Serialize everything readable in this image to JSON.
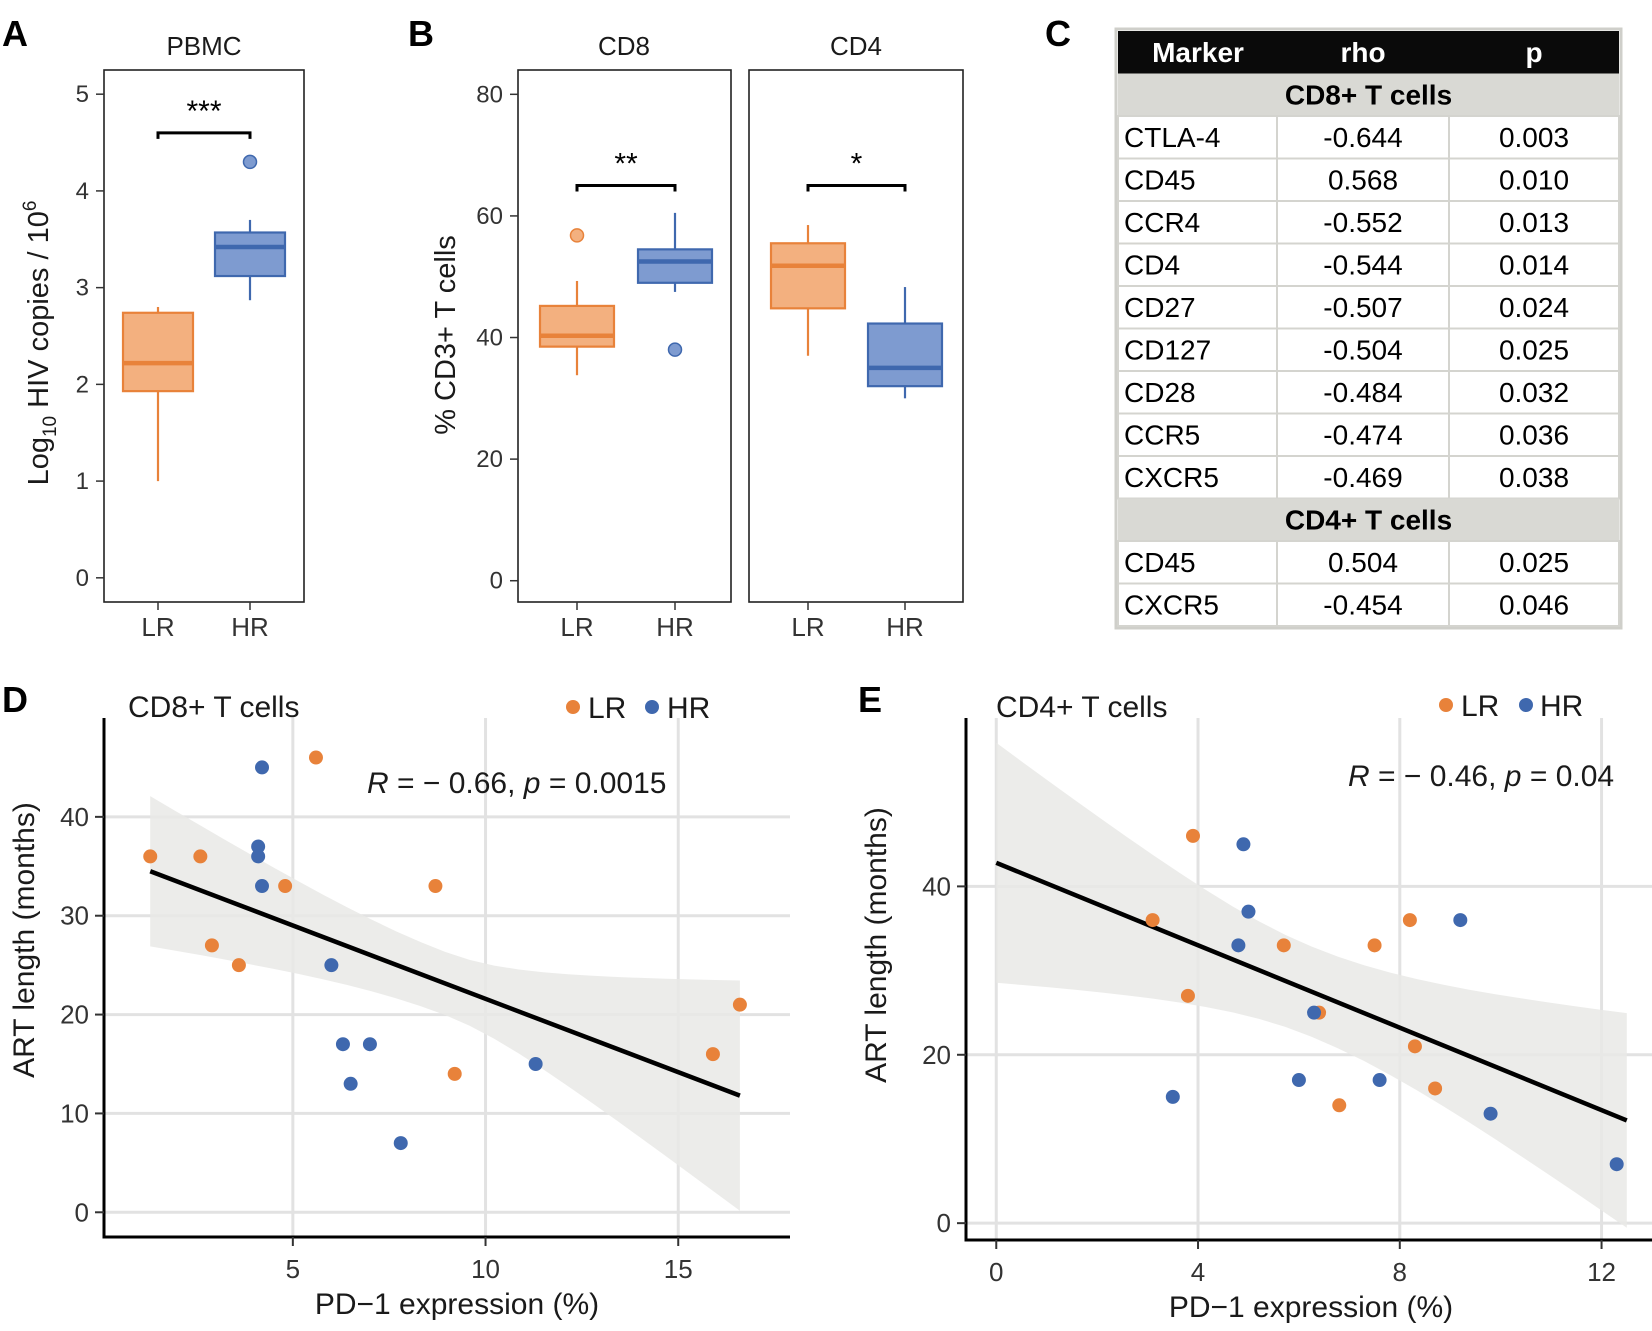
{
  "colors": {
    "LR": "#E8823A",
    "LR_fill": "#F3B07F",
    "HR": "#3F68AE",
    "HR_fill": "#7E9BD0",
    "band": "#E9E9E6",
    "grid": "#E2E2E2",
    "table_header_bg": "#0A0A0A",
    "table_section_bg": "#D9D9D4"
  },
  "chart_data": [
    {
      "id": "A",
      "panel_label": "A",
      "type": "box",
      "strip_title": "PBMC",
      "ylabel_main": "Log",
      "ylabel_sub": "10",
      "ylabel_rest": " HIV copies / 10",
      "ylabel_sup": "6",
      "ylim": [
        -0.25,
        5.25
      ],
      "yticks": [
        "0",
        "1",
        "2",
        "3",
        "4",
        "5"
      ],
      "categories": [
        "LR",
        "HR"
      ],
      "boxes": [
        {
          "group": "LR",
          "min": 1.0,
          "q1": 1.93,
          "median": 2.22,
          "q3": 2.74,
          "max": 2.8,
          "outliers": []
        },
        {
          "group": "HR",
          "min": 2.87,
          "q1": 3.12,
          "median": 3.42,
          "q3": 3.57,
          "max": 3.7,
          "outliers": [
            4.3
          ]
        }
      ],
      "significance": [
        {
          "label": "***",
          "y": 4.6
        }
      ]
    },
    {
      "id": "B",
      "panel_label": "B",
      "type": "box",
      "ylabel": "% CD3+ T cells",
      "ylim": [
        -3.5,
        84
      ],
      "yticks": [
        "0",
        "20",
        "40",
        "60",
        "80"
      ],
      "facets": [
        {
          "strip_title": "CD8",
          "categories": [
            "LR",
            "HR"
          ],
          "boxes": [
            {
              "group": "LR",
              "min": 33.8,
              "q1": 38.5,
              "median": 40.3,
              "q3": 45.2,
              "max": 49.3,
              "outliers": [
                56.8
              ]
            },
            {
              "group": "HR",
              "min": 47.5,
              "q1": 49.0,
              "median": 52.5,
              "q3": 54.5,
              "max": 60.5,
              "outliers": [
                38.0
              ]
            }
          ],
          "significance": {
            "label": "**",
            "y": 65.0
          }
        },
        {
          "strip_title": "CD4",
          "categories": [
            "LR",
            "HR"
          ],
          "boxes": [
            {
              "group": "LR",
              "min": 37.0,
              "q1": 44.8,
              "median": 51.8,
              "q3": 55.5,
              "max": 58.5,
              "outliers": []
            },
            {
              "group": "HR",
              "min": 30.0,
              "q1": 32.0,
              "median": 35.0,
              "q3": 42.3,
              "max": 48.3,
              "outliers": []
            }
          ],
          "significance": {
            "label": "*",
            "y": 65.0
          }
        }
      ]
    },
    {
      "id": "C",
      "panel_label": "C",
      "type": "table",
      "columns": [
        "Marker",
        "rho",
        "p"
      ],
      "sections": [
        {
          "title": "CD8+ T cells",
          "rows": [
            [
              "CTLA-4",
              "-0.644",
              "0.003"
            ],
            [
              "CD45",
              "0.568",
              "0.010"
            ],
            [
              "CCR4",
              "-0.552",
              "0.013"
            ],
            [
              "CD4",
              "-0.544",
              "0.014"
            ],
            [
              "CD27",
              "-0.507",
              "0.024"
            ],
            [
              "CD127",
              "-0.504",
              "0.025"
            ],
            [
              "CD28",
              "-0.484",
              "0.032"
            ],
            [
              "CCR5",
              "-0.474",
              "0.036"
            ],
            [
              "CXCR5",
              "-0.469",
              "0.038"
            ]
          ]
        },
        {
          "title": "CD4+ T cells",
          "rows": [
            [
              "CD45",
              "0.504",
              "0.025"
            ],
            [
              "CXCR5",
              "-0.454",
              "0.046"
            ]
          ]
        }
      ]
    },
    {
      "id": "D",
      "panel_label": "D",
      "type": "scatter",
      "title": "CD8+ T cells",
      "xlabel": "PD−1 expression (%)",
      "ylabel": "ART length (months)",
      "xlim": [
        0.1,
        17.9
      ],
      "ylim": [
        -2.5,
        50
      ],
      "xticks": [
        5,
        10,
        15
      ],
      "yticks": [
        0,
        10,
        20,
        30,
        40
      ],
      "legend": {
        "position": "top-right",
        "entries": [
          "LR",
          "HR"
        ]
      },
      "stat_R": "− 0.66",
      "stat_p": "0.0015",
      "series": [
        {
          "name": "LR",
          "points": [
            [
              1.3,
              36
            ],
            [
              2.6,
              36
            ],
            [
              2.9,
              27
            ],
            [
              3.6,
              25
            ],
            [
              4.8,
              33
            ],
            [
              5.6,
              46
            ],
            [
              8.7,
              33
            ],
            [
              9.2,
              14
            ],
            [
              15.9,
              16
            ],
            [
              16.6,
              21
            ]
          ]
        },
        {
          "name": "HR",
          "points": [
            [
              4.2,
              45
            ],
            [
              4.1,
              37
            ],
            [
              4.1,
              36
            ],
            [
              4.2,
              33
            ],
            [
              6.0,
              25
            ],
            [
              6.3,
              17
            ],
            [
              7.0,
              17
            ],
            [
              6.5,
              13
            ],
            [
              7.8,
              7
            ],
            [
              11.3,
              15
            ]
          ]
        }
      ],
      "fit": {
        "x": [
          1.3,
          16.6
        ],
        "y": [
          34.5,
          11.8
        ],
        "ci_lower": [
          27.0,
          0.5
        ],
        "ci_upper": [
          42.2,
          23.8
        ]
      }
    },
    {
      "id": "E",
      "panel_label": "E",
      "type": "scatter",
      "title": "CD4+ T cells",
      "xlabel": "PD−1 expression (%)",
      "ylabel": "ART length (months)",
      "xlim": [
        -0.6,
        13.0
      ],
      "ylim": [
        -2,
        60
      ],
      "xticks": [
        0,
        4,
        8,
        12
      ],
      "yticks": [
        0,
        20,
        40
      ],
      "legend": {
        "position": "top-right",
        "entries": [
          "LR",
          "HR"
        ]
      },
      "stat_R": "− 0.46",
      "stat_p": "0.04",
      "series": [
        {
          "name": "LR",
          "points": [
            [
              3.1,
              36
            ],
            [
              3.9,
              46
            ],
            [
              3.8,
              27
            ],
            [
              5.7,
              33
            ],
            [
              6.4,
              25
            ],
            [
              6.8,
              14
            ],
            [
              7.5,
              33
            ],
            [
              8.2,
              36
            ],
            [
              8.3,
              21
            ],
            [
              8.7,
              16
            ]
          ]
        },
        {
          "name": "HR",
          "points": [
            [
              3.5,
              15
            ],
            [
              4.9,
              45
            ],
            [
              5.0,
              37
            ],
            [
              4.8,
              33
            ],
            [
              6.3,
              25
            ],
            [
              6.0,
              17
            ],
            [
              7.6,
              17
            ],
            [
              9.2,
              36
            ],
            [
              9.8,
              13
            ],
            [
              12.3,
              7
            ]
          ]
        }
      ],
      "fit": {
        "x": [
          0.0,
          12.5
        ],
        "y": [
          42.8,
          12.2
        ],
        "ci_lower": [
          28.5,
          -0.5
        ],
        "ci_upper": [
          57.0,
          25.0
        ]
      }
    }
  ]
}
